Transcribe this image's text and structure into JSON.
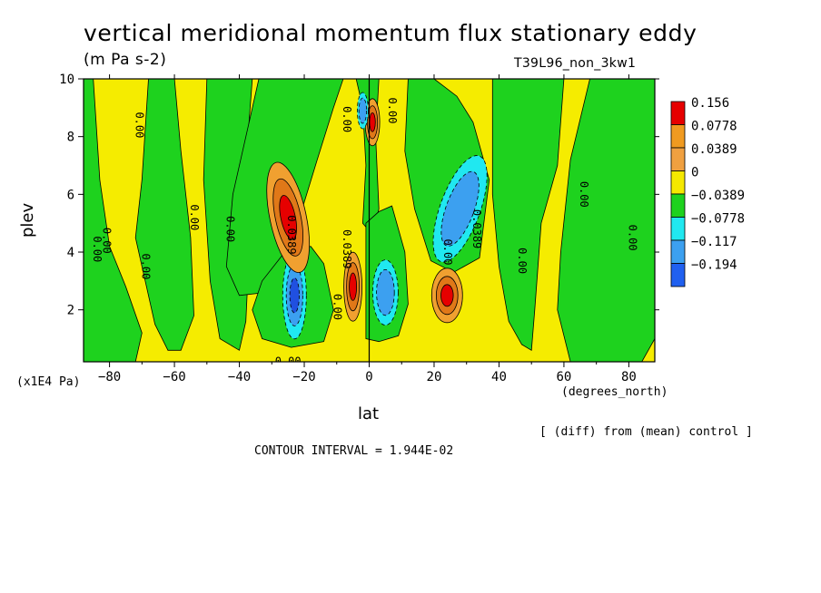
{
  "chart_data": {
    "type": "heatmap",
    "title": "vertical meridional momentum flux stationary eddy",
    "units": "(m Pa s-2)",
    "run_label": "T39L96_non_3kw1",
    "xlabel": "lat",
    "x_units": "(degrees_north)",
    "ylabel": "plev",
    "y_units": "(x1E4 Pa)",
    "note": "[ (diff) from (mean) control ]",
    "contour_interval": "CONTOUR INTERVAL = 1.944E-02",
    "xlim": [
      -88,
      88
    ],
    "ylim": [
      10,
      0.2
    ],
    "x_ticks": [
      -80,
      -60,
      -40,
      -20,
      0,
      20,
      40,
      60,
      80
    ],
    "y_ticks": [
      2,
      4,
      6,
      8,
      10
    ],
    "legend": {
      "placement": "right",
      "levels": [
        "0.156",
        "0.0778",
        "0.0389",
        "0",
        "−0.0389",
        "−0.0778",
        "−0.117",
        "−0.194"
      ],
      "colors": [
        "#e60000",
        "#f09a20",
        "#f0a040",
        "#f5e800",
        "#1ed21e",
        "#20e8f0",
        "#3ca0f0",
        "#2060f0"
      ]
    },
    "fill_colors": {
      "pos3": "#e60000",
      "pos2": "#e07818",
      "pos1": "#f0a030",
      "zero_pos": "#f5ec00",
      "zero_neg": "#1ed21e",
      "neg1": "#20e8f0",
      "neg2": "#3ca0f0",
      "neg3": "#2050e0"
    },
    "extrema": [
      {
        "sign": "negative",
        "lat": -23,
        "plev": 2.5,
        "level": 3
      },
      {
        "sign": "positive",
        "lat": -5,
        "plev": 2.8,
        "level": 3
      },
      {
        "sign": "negative",
        "lat": 5,
        "plev": 2.6,
        "level": 2
      },
      {
        "sign": "positive",
        "lat": 24,
        "plev": 2.5,
        "level": 3
      },
      {
        "sign": "positive",
        "lat": -25,
        "plev": 5.2,
        "level": 3
      },
      {
        "sign": "negative",
        "lat": 28,
        "plev": 5.5,
        "level": 2
      },
      {
        "sign": "positive",
        "lat": 1,
        "plev": 8.5,
        "level": 3
      },
      {
        "sign": "negative",
        "lat": -2,
        "plev": 8.9,
        "level": 2
      }
    ],
    "contour_labels": [
      {
        "text": "0.00",
        "lat": -25,
        "plev": 0.2
      },
      {
        "text": "0.00",
        "lat": -69,
        "plev": 3.5
      },
      {
        "text": "0.00",
        "lat": -84,
        "plev": 4.1
      },
      {
        "text": "0.00",
        "lat": -81,
        "plev": 4.4
      },
      {
        "text": "0.00",
        "lat": -54,
        "plev": 5.2
      },
      {
        "text": "0.00",
        "lat": -43,
        "plev": 4.8
      },
      {
        "text": "0.0389",
        "lat": -24,
        "plev": 4.6
      },
      {
        "text": "0.00",
        "lat": -10,
        "plev": 2.1
      },
      {
        "text": "0.0389",
        "lat": -7,
        "plev": 4.1
      },
      {
        "text": "0.00",
        "lat": 24,
        "plev": 4.0
      },
      {
        "text": "0.0389",
        "lat": 33,
        "plev": 4.8
      },
      {
        "text": "0.00",
        "lat": 47,
        "plev": 3.7
      },
      {
        "text": "0.00",
        "lat": 66,
        "plev": 6.0
      },
      {
        "text": "0.00",
        "lat": 81,
        "plev": 4.5
      },
      {
        "text": "0.00",
        "lat": -71,
        "plev": 8.4
      },
      {
        "text": "0.00",
        "lat": -7,
        "plev": 8.6
      },
      {
        "text": "0.00",
        "lat": 7,
        "plev": 8.9
      }
    ]
  }
}
